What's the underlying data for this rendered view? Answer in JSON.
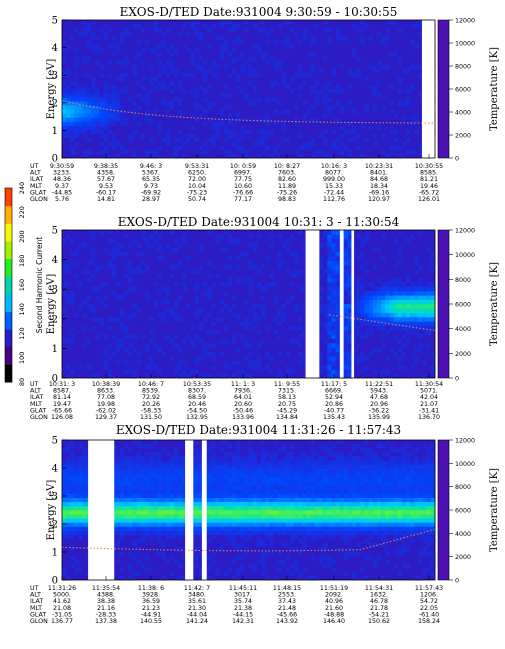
{
  "chart_data": {
    "type": "heatmap",
    "colorbar": {
      "label": "Second Harmonic Current",
      "ticks": [
        80,
        100,
        120,
        140,
        160,
        180,
        200,
        220,
        240
      ],
      "range": [
        80,
        240
      ],
      "colors": [
        "#000000",
        "#4a0080",
        "#2a1cc8",
        "#0060ff",
        "#00b8ff",
        "#00d4a8",
        "#22ee22",
        "#a0f000",
        "#f8f800",
        "#ffb000",
        "#ff4000"
      ]
    },
    "panels": [
      {
        "title": "EXOS-D/TED   Date:931004   9:30:59 - 10:30:55",
        "ylabel": "Energy [eV]",
        "y2label": "Temperature [K]",
        "ylim": [
          0,
          5
        ],
        "y2lim": [
          0,
          12000
        ],
        "yticks": [
          "0",
          "1",
          "2",
          "3",
          "4",
          "5"
        ],
        "y2ticks": [
          "0",
          "2000",
          "4000",
          "6000",
          "8000",
          "10000",
          "12000"
        ],
        "row_labels": [
          "UT",
          "ALT",
          "ILAT",
          "MLT",
          "GLAT",
          "GLON"
        ],
        "columns": [
          [
            "9:30:59",
            "3233.",
            "48.36",
            "9.37",
            "-44.85",
            "5.76"
          ],
          [
            "9:38:35",
            "4358.",
            "57.67",
            "9.53",
            "-60.17",
            "14.81"
          ],
          [
            "9:46: 3",
            "5367.",
            "65.35",
            "9.73",
            "-69.92",
            "28.97"
          ],
          [
            "9:53:31",
            "6250.",
            "72.00",
            "10.04",
            "-75.23",
            "50.74"
          ],
          [
            "10: 0:59",
            "6997.",
            "77.75",
            "10.60",
            "-76.66",
            "77.17"
          ],
          [
            "10: 8:27",
            "7603.",
            "82.60",
            "11.89",
            "-75.26",
            "98.83"
          ],
          [
            "10:16: 3",
            "8077.",
            "999.00",
            "15.33",
            "-72.44",
            "112.76"
          ],
          [
            "10:23:31",
            "8401.",
            "84.68",
            "18.34",
            "-69.16",
            "120.97"
          ],
          [
            "10:30:55",
            "8585.",
            "81.21",
            "19.46",
            "-65.72",
            "126.01"
          ]
        ]
      },
      {
        "title": "EXOS-D/TED   Date:931004   10:31: 3 - 11:30:54",
        "ylabel": "Energy [eV]",
        "y2label": "Temperature [K]",
        "ylim": [
          0,
          5
        ],
        "y2lim": [
          0,
          12000
        ],
        "yticks": [
          "0",
          "1",
          "2",
          "3",
          "4",
          "5"
        ],
        "y2ticks": [
          "0",
          "2000",
          "4000",
          "6000",
          "8000",
          "10000",
          "12000"
        ],
        "row_labels": [
          "UT",
          "ALT",
          "ILAT",
          "MLT",
          "GLAT",
          "GLON"
        ],
        "columns": [
          [
            "10:31: 3",
            "8587.",
            "81.14",
            "19.47",
            "-65.66",
            "126.08"
          ],
          [
            "10:38:39",
            "8633.",
            "77.08",
            "19.98",
            "-62.02",
            "129.37"
          ],
          [
            "10:46: 7",
            "8539.",
            "72.92",
            "20.26",
            "-58.33",
            "131.50"
          ],
          [
            "10:53:35",
            "8307.",
            "68.59",
            "20.46",
            "-54.50",
            "132.95"
          ],
          [
            "11: 1: 3",
            "7936.",
            "64.01",
            "20.60",
            "-50.46",
            "133.96"
          ],
          [
            "11: 9:55",
            "7315.",
            "58.13",
            "20.75",
            "-45.29",
            "134.84"
          ],
          [
            "11:17: 5",
            "6669.",
            "52.94",
            "20.86",
            "-40.77",
            "135.43"
          ],
          [
            "11:22:51",
            "5943.",
            "47.68",
            "20.96",
            "-36.22",
            "135.99"
          ],
          [
            "11:30:54",
            "5071.",
            "42.04",
            "21.07",
            "-31.41",
            "136.70"
          ]
        ]
      },
      {
        "title": "EXOS-D/TED   Date:931004   11:31:26 - 11:57:43",
        "ylabel": "Energy [eV]",
        "y2label": "Temperature [K]",
        "ylim": [
          0,
          5
        ],
        "y2lim": [
          0,
          12000
        ],
        "yticks": [
          "0",
          "1",
          "2",
          "3",
          "4",
          "5"
        ],
        "y2ticks": [
          "0",
          "2000",
          "4000",
          "6000",
          "8000",
          "10000",
          "12000"
        ],
        "row_labels": [
          "UT",
          "ALT",
          "ILAT",
          "MLT",
          "GLAT",
          "GLON"
        ],
        "columns": [
          [
            "11:31:26",
            "5000.",
            "41.62",
            "21.08",
            "-31.05",
            "136.77"
          ],
          [
            "11:35:54",
            "4388.",
            "38.38",
            "21.16",
            "-28.33",
            "137.38"
          ],
          [
            "11:38: 6",
            "3928.",
            "36.59",
            "21.23",
            "-44.91",
            "140.55"
          ],
          [
            "11:42: 7",
            "3480.",
            "35.61",
            "21.30",
            "-44.04",
            "141.24"
          ],
          [
            "11:45:11",
            "3017.",
            "35.74",
            "21.38",
            "-44.15",
            "142.31"
          ],
          [
            "11:48:15",
            "2553.",
            "37.43",
            "21.48",
            "-45.66",
            "143.92"
          ],
          [
            "11:51:19",
            "2092.",
            "40.96",
            "21.60",
            "-48.88",
            "146.40"
          ],
          [
            "11:54:31",
            "1632.",
            "46.78",
            "21.78",
            "-54.21",
            "150.62"
          ],
          [
            "11:57:43",
            "1206.",
            "54.72",
            "22.05",
            "-61.40",
            "158.24"
          ]
        ]
      }
    ]
  }
}
